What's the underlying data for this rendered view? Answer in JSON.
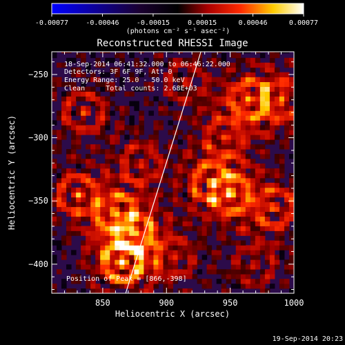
{
  "colorbar": {
    "range": [
      -0.00077,
      0.00077
    ],
    "tick_labels": [
      "-0.00077",
      "-0.00046",
      "-0.00015",
      "0.00015",
      "0.00046",
      "0.00077"
    ],
    "units_text": "(photons cm⁻² s⁻¹ asec⁻²)",
    "colors": [
      "#0000ff",
      "#000000",
      "#ff0000",
      "#ffff00",
      "#ffffff"
    ]
  },
  "chart_data": {
    "type": "heatmap",
    "title": "Reconstructed RHESSI Image",
    "xlabel": "Heliocentric X (arcsec)",
    "ylabel": "Heliocentric Y (arcsec)",
    "xlim": [
      810,
      1000
    ],
    "ylim": [
      -423,
      -232
    ],
    "xticks": [
      850,
      900,
      950,
      1000
    ],
    "xtick_labels": [
      "850",
      "900",
      "950",
      "1000"
    ],
    "yticks": [
      -250,
      -300,
      -350,
      -400
    ],
    "ytick_labels": [
      "−250",
      "−300",
      "−350",
      "−400"
    ],
    "limb_line": [
      [
        868,
        -423
      ],
      [
        927,
        -232
      ]
    ],
    "peak": [
      866,
      -398
    ],
    "annotations": [
      "18-Sep-2014 06:41:32.000 to 06:46:22.000",
      "Detectors: 3F 6F 9F, Att 0",
      "Energy Range: 25.0 - 50.0 keV",
      "Clean     Total counts: 2.68E+03",
      "Position of Peak = [866,-398]"
    ],
    "hotspots": [
      {
        "x": 866,
        "y": -398,
        "value": 0.00077
      },
      {
        "x": 875,
        "y": -375,
        "value": 0.0006
      },
      {
        "x": 860,
        "y": -360,
        "value": 0.0005
      },
      {
        "x": 950,
        "y": -345,
        "value": 0.00055
      },
      {
        "x": 935,
        "y": -335,
        "value": 0.0005
      },
      {
        "x": 965,
        "y": -270,
        "value": 0.0006
      },
      {
        "x": 945,
        "y": -300,
        "value": 0.0004
      },
      {
        "x": 990,
        "y": -270,
        "value": 0.0005
      },
      {
        "x": 985,
        "y": -355,
        "value": 0.0005
      },
      {
        "x": 835,
        "y": -280,
        "value": 0.0004
      },
      {
        "x": 830,
        "y": -345,
        "value": 0.0005
      },
      {
        "x": 880,
        "y": -320,
        "value": 0.0004
      },
      {
        "x": 905,
        "y": -395,
        "value": 0.00035
      },
      {
        "x": 915,
        "y": -255,
        "value": 0.0003
      },
      {
        "x": 970,
        "y": -400,
        "value": 0.0003
      }
    ]
  },
  "footer": {
    "timestamp": "19-Sep-2014 20:23"
  }
}
